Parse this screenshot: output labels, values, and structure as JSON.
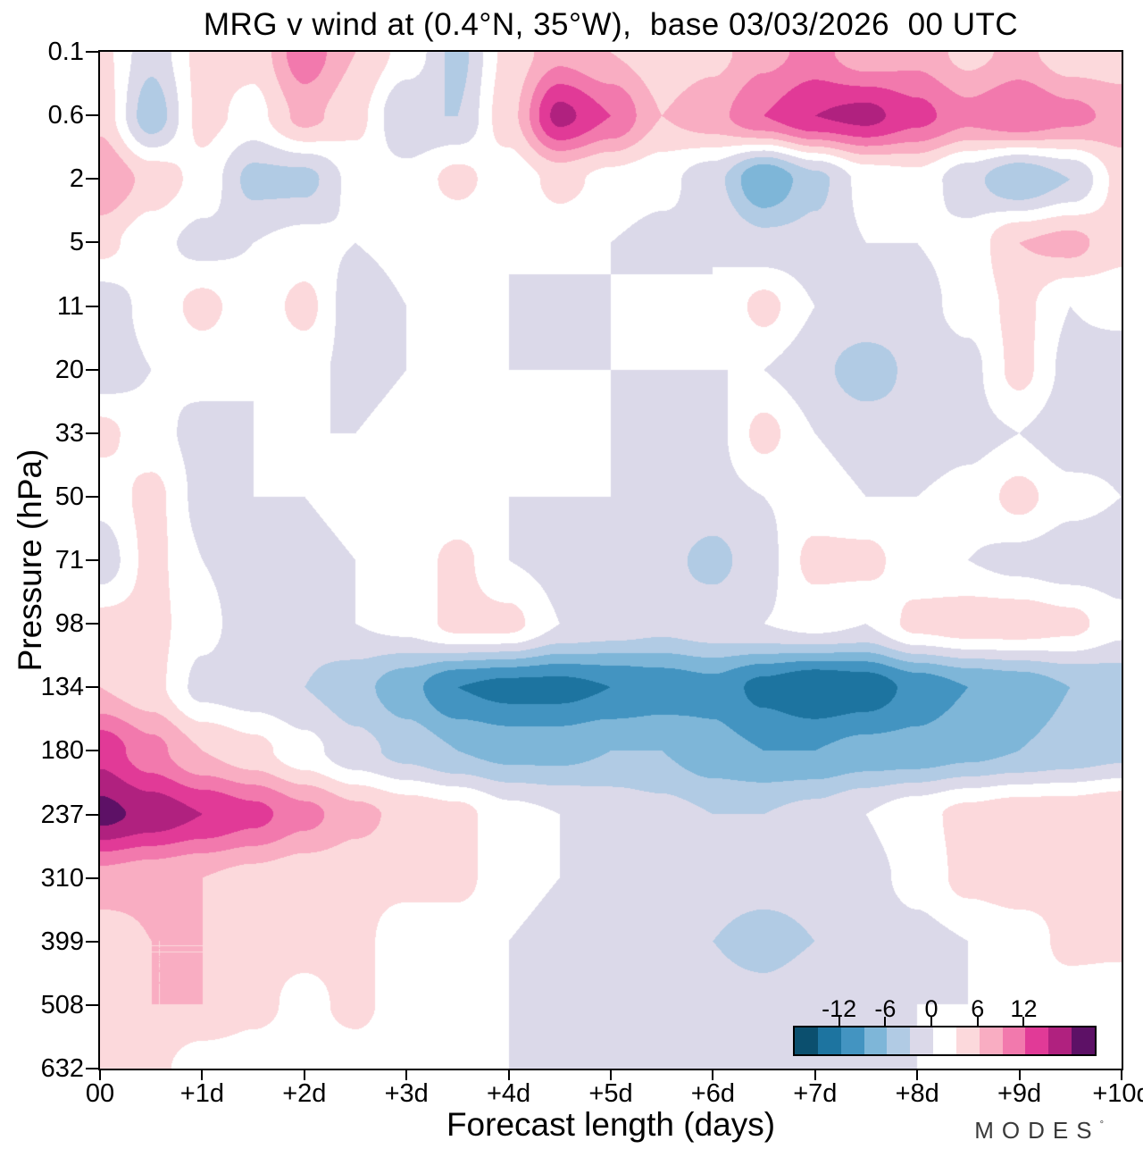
{
  "title": "MRG v wind at (0.4°N, 35°W),  base 03/03/2026  00 UTC",
  "axes": {
    "x_label": "Forecast length (days)",
    "y_label": "Pressure (hPa)",
    "x_ticks": [
      "00",
      "+1d",
      "+2d",
      "+3d",
      "+4d",
      "+5d",
      "+6d",
      "+7d",
      "+8d",
      "+9d",
      "+10d"
    ],
    "y_ticks": [
      "0.1",
      "0.6",
      "2",
      "5",
      "11",
      "20",
      "33",
      "50",
      "71",
      "98",
      "134",
      "180",
      "237",
      "310",
      "399",
      "508",
      "632"
    ]
  },
  "colorbar": {
    "tick_labels": [
      "-12",
      "-6",
      "0",
      "6",
      "12"
    ],
    "tick_values": [
      -12,
      -6,
      0,
      6,
      12
    ],
    "min": -18,
    "max": 21,
    "cell_colors": [
      "#0b4f6e",
      "#1d74a0",
      "#4394c1",
      "#7eb6d8",
      "#b1cbe4",
      "#dbd9e9",
      "#ffffff",
      "#fcd9dc",
      "#f9adc2",
      "#f279ad",
      "#e13a97",
      "#b0217f",
      "#5d1166"
    ]
  },
  "logo": {
    "text": "MODES",
    "mark": "°"
  },
  "chart_data": {
    "type": "filled_contour",
    "title": "MRG v wind at (0.4°N, 35°W), base 03/03/2026 00 UTC",
    "xlabel": "Forecast length (days)",
    "ylabel": "Pressure (hPa)",
    "x_days": [
      0,
      0.5,
      1,
      1.5,
      2,
      2.5,
      3,
      3.5,
      4,
      4.5,
      5,
      5.5,
      6,
      6.5,
      7,
      7.5,
      8,
      8.5,
      9,
      9.5,
      10
    ],
    "y_pressure_hpa": [
      0.1,
      0.6,
      2,
      5,
      11,
      20,
      33,
      50,
      71,
      98,
      134,
      180,
      237,
      310,
      399,
      508,
      632
    ],
    "y_scale": "levels evenly spaced, 0.1 hPa at top, 632 hPa at bottom",
    "x_range": [
      0,
      10
    ],
    "units": "m/s",
    "levels": [
      -18,
      -15,
      -12,
      -9,
      -6,
      -3,
      0,
      3,
      6,
      9,
      12,
      15,
      18
    ],
    "level_colors": [
      "#0b4f6e",
      "#1d74a0",
      "#4394c1",
      "#7eb6d8",
      "#b1cbe4",
      "#dbd9e9",
      "#ffffff",
      "#fcd9dc",
      "#f9adc2",
      "#f279ad",
      "#e13a97",
      "#b0217f"
    ],
    "under_color": "#062c41",
    "over_color": "#5d1166",
    "values": [
      [
        4,
        -2,
        4,
        4,
        11,
        6,
        2,
        -4,
        4,
        8,
        6,
        4,
        5,
        8,
        10,
        7,
        8,
        5,
        7,
        4,
        4
      ],
      [
        5,
        -5,
        4,
        2,
        7,
        4,
        -3,
        -3,
        5,
        16,
        12,
        6,
        8,
        12,
        15,
        16,
        13,
        10,
        12,
        10,
        8
      ],
      [
        9,
        5,
        2,
        -4,
        -4,
        1,
        1,
        4,
        1,
        4,
        2,
        1,
        -2,
        -9,
        -4,
        1,
        2,
        -2,
        -6,
        -3,
        4
      ],
      [
        4,
        1,
        -1,
        0,
        1,
        0,
        1,
        0,
        0,
        1,
        0,
        -1,
        0,
        -2,
        -2,
        0,
        0,
        1,
        6,
        7,
        4
      ],
      [
        -2,
        1,
        4,
        1,
        4,
        -2,
        0,
        0,
        0,
        -1,
        0,
        1,
        0,
        4,
        0,
        0,
        -1,
        1,
        4,
        0,
        1
      ],
      [
        -2,
        0,
        1,
        0,
        1,
        -1,
        0,
        1,
        0,
        0,
        0,
        0,
        0,
        0,
        -2,
        -5,
        -2,
        -1,
        4,
        -1,
        -2
      ],
      [
        4,
        1,
        -1,
        0,
        0,
        0,
        1,
        0,
        0,
        1,
        0,
        -2,
        -1,
        4,
        0,
        -1,
        -2,
        -1,
        0,
        -2,
        -1
      ],
      [
        1,
        4,
        -1,
        0,
        0,
        1,
        0,
        0,
        0,
        0,
        0,
        0,
        -1,
        0,
        1,
        0,
        0,
        1,
        4,
        1,
        0
      ],
      [
        -2,
        4,
        0,
        -2,
        -1,
        0,
        1,
        4,
        0,
        -1,
        -2,
        -2,
        -4,
        -1,
        4,
        4,
        1,
        0,
        -1,
        -2,
        -2
      ],
      [
        4,
        4,
        1,
        -2,
        -2,
        0,
        1,
        4,
        4,
        0,
        -1,
        -2,
        -1,
        0,
        1,
        0,
        4,
        5,
        5,
        4,
        1
      ],
      [
        6,
        4,
        -1,
        -2,
        -3,
        -5,
        -8,
        -12,
        -13,
        -13,
        -12,
        -11,
        -10,
        -13,
        -15,
        -14,
        -11,
        -9,
        -8,
        -6,
        -5
      ],
      [
        14,
        10,
        6,
        4,
        1,
        -2,
        -4,
        -6,
        -7,
        -7,
        -6,
        -6,
        -8,
        -9,
        -9,
        -8,
        -8,
        -7,
        -6,
        -5,
        -4
      ],
      [
        19,
        17,
        15,
        13,
        10,
        7,
        5,
        4,
        1,
        0,
        -1,
        -2,
        -3,
        -3,
        -2,
        0,
        2,
        4,
        5,
        5,
        6
      ],
      [
        8,
        7,
        6,
        5,
        4,
        4,
        4,
        4,
        1,
        0,
        -1,
        -2,
        -2,
        -2,
        -2,
        -1,
        1,
        4,
        5,
        4,
        4
      ],
      [
        4,
        6,
        6,
        4,
        4,
        4,
        1,
        1,
        0,
        -1,
        -2,
        -2,
        -3,
        -4,
        -3,
        -2,
        -1,
        0,
        1,
        4,
        4
      ],
      [
        4,
        6,
        6,
        4,
        2,
        4,
        1,
        1,
        0,
        -1,
        -1,
        -2,
        -2,
        -2,
        -1,
        -1,
        0,
        0,
        1,
        1,
        0
      ],
      [
        4,
        4,
        1,
        1,
        1,
        1,
        0,
        0,
        0,
        -1,
        -1,
        -1,
        -1,
        -1,
        -1,
        -1,
        0,
        0,
        0,
        0,
        0
      ]
    ]
  }
}
